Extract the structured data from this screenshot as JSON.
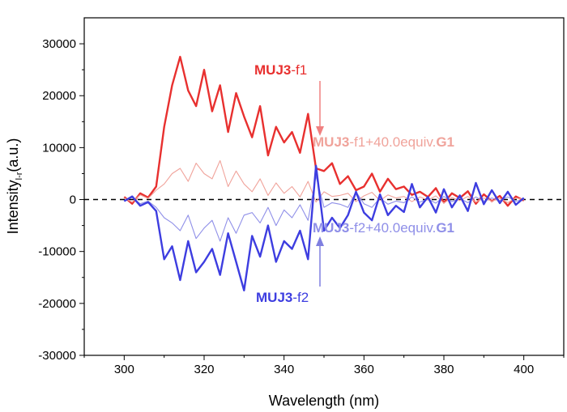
{
  "chart_data": {
    "type": "line",
    "title": "",
    "xlabel": "Wavelength (nm)",
    "ylabel": {
      "main": "Intensity",
      "sub": "l-r",
      "unit": "(a.u.)"
    },
    "xlim": [
      290,
      410
    ],
    "ylim": [
      -30000,
      35000
    ],
    "x_ticks": [
      300,
      320,
      340,
      360,
      380,
      400
    ],
    "y_ticks": [
      -30000,
      -20000,
      -10000,
      0,
      10000,
      20000,
      30000
    ],
    "zero_line": {
      "y": 0,
      "style": "dashed"
    },
    "x": [
      300,
      302,
      304,
      306,
      308,
      310,
      312,
      314,
      316,
      318,
      320,
      322,
      324,
      326,
      328,
      330,
      332,
      334,
      336,
      338,
      340,
      342,
      344,
      346,
      348,
      350,
      352,
      354,
      356,
      358,
      360,
      362,
      364,
      366,
      368,
      370,
      372,
      374,
      376,
      378,
      380,
      382,
      384,
      386,
      388,
      390,
      392,
      394,
      396,
      398,
      400
    ],
    "series": [
      {
        "name": "MUJ3-f1",
        "color": "#e8302f",
        "width": "thick",
        "values": [
          500,
          -800,
          1200,
          400,
          2500,
          14000,
          22000,
          27500,
          21000,
          18000,
          25000,
          17000,
          22000,
          13000,
          20500,
          16000,
          12000,
          18000,
          8500,
          14000,
          11000,
          13000,
          9000,
          16500,
          6000,
          5500,
          7000,
          3000,
          4500,
          1800,
          2500,
          5000,
          1500,
          4000,
          2000,
          2500,
          900,
          1500,
          500,
          2200,
          -600,
          1200,
          300,
          1600,
          -800,
          1000,
          -300,
          700,
          -1200,
          600,
          -200
        ]
      },
      {
        "name": "MUJ3-f1+40.0equiv.G1",
        "color": "#f0a39b",
        "width": "thin",
        "values": [
          300,
          -500,
          900,
          200,
          1800,
          3000,
          5000,
          6000,
          3500,
          7000,
          5000,
          4000,
          7500,
          2500,
          5500,
          3000,
          1500,
          4000,
          800,
          3200,
          1200,
          2500,
          500,
          3500,
          -500,
          1500,
          600,
          800,
          1200,
          -400,
          700,
          1400,
          -200,
          900,
          300,
          600,
          -400,
          500,
          -100,
          700,
          -700,
          400,
          -200,
          600,
          -500,
          300,
          -300,
          200,
          -600,
          300,
          0
        ]
      },
      {
        "name": "MUJ3-f2+40.0equiv.G1",
        "color": "#8f8fe8",
        "width": "thin",
        "values": [
          -200,
          400,
          -800,
          -300,
          -1500,
          -3500,
          -4500,
          -6000,
          -3000,
          -7500,
          -5500,
          -4000,
          -8000,
          -3500,
          -6500,
          -3000,
          -2500,
          -4500,
          -1500,
          -5000,
          -2000,
          -3500,
          -1000,
          -4000,
          4500,
          -1500,
          -600,
          -900,
          -1500,
          1500,
          -800,
          -1500,
          300,
          -900,
          -300,
          -600,
          500,
          -500,
          100,
          -700,
          600,
          -400,
          200,
          -600,
          500,
          -300,
          300,
          -200,
          500,
          -300,
          0
        ]
      },
      {
        "name": "MUJ3-f2",
        "color": "#3d3de0",
        "width": "thick",
        "values": [
          -300,
          600,
          -1200,
          -500,
          -2200,
          -11500,
          -9000,
          -15500,
          -8000,
          -14000,
          -12000,
          -9500,
          -14500,
          -6500,
          -12000,
          -17500,
          -7000,
          -11000,
          -5000,
          -12000,
          -8000,
          -9500,
          -6000,
          -11500,
          6500,
          -6000,
          -3500,
          -5500,
          -3000,
          1500,
          -2500,
          -4000,
          1000,
          -3000,
          -1200,
          -2400,
          3000,
          -1500,
          500,
          -2500,
          2000,
          -1500,
          800,
          -2200,
          3200,
          -900,
          1800,
          -700,
          1500,
          -1000,
          300
        ]
      }
    ],
    "annotations": {
      "f1_label": {
        "bold": "MUJ3",
        "rest": "-f1",
        "color": "#e8302f"
      },
      "f1_g1_label": {
        "bold": "MUJ3",
        "rest": "-f1+40.0equiv.",
        "bold2": "G1",
        "color": "#f0a39b"
      },
      "f2_g1_label": {
        "bold": "MUJ3",
        "rest": "-f2+40.0equiv.",
        "bold2": "G1",
        "color": "#8f8fe8"
      },
      "f2_label": {
        "bold": "MUJ3",
        "rest": "-f2",
        "color": "#3d3de0"
      }
    }
  }
}
